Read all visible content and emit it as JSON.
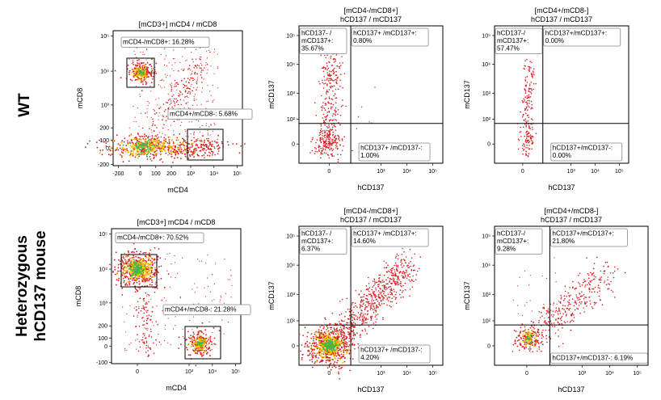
{
  "row_labels": {
    "wt": "WT",
    "het_line1": "Heterozygous",
    "het_line2": "hCD137 mouse"
  },
  "colors": {
    "dot": "#d62020",
    "dense": "#f5c400",
    "core": "#42b84a",
    "gate_box": "#000000",
    "label_fill": "#ffffff",
    "label_border": "#888888"
  },
  "chart_data": [
    {
      "id": "wt-cd4-cd8",
      "type": "scatter",
      "scale": "biexponential",
      "title": "[mCD3+] mCD4 / mCD8",
      "title_line2": "",
      "xlabel": "mCD4",
      "ylabel": "mCD8",
      "xticks": [
        "-200",
        "0",
        "100",
        "200",
        "10³",
        "10⁴",
        "10⁵"
      ],
      "yticks": [
        "10⁵",
        "10⁴",
        "10³",
        "200",
        "100",
        "0",
        "-200"
      ],
      "gates": [
        {
          "label": "mCD4-/mCD8+: 16.28%",
          "percent": 16.28
        },
        {
          "label": "mCD4+/mCD8-: 5.68%",
          "percent": 5.68
        }
      ]
    },
    {
      "id": "wt-cd8-cd137",
      "type": "scatter",
      "scale": "biexponential",
      "title": "[mCD4-/mCD8+]",
      "title_line2": "hCD137 / mCD137",
      "xlabel": "hCD137",
      "ylabel": "mCD137",
      "xticks": [
        "0",
        "10³",
        "10⁴",
        "10⁵"
      ],
      "yticks": [
        "10⁵",
        "10⁴",
        "10³",
        "10²",
        "0"
      ],
      "quadrants": [
        {
          "label1": "hCD137- /",
          "label2": "mCD137+:",
          "label3": "35.67%",
          "percent": 35.67
        },
        {
          "label1": "hCD137+ /mCD137+:",
          "label2": "0.80%",
          "label3": "",
          "percent": 0.8
        },
        {
          "label1": "hCD137+ /mCD137-:",
          "label2": "1.00%",
          "label3": "",
          "percent": 1.0
        }
      ]
    },
    {
      "id": "wt-cd4-cd137",
      "type": "scatter",
      "scale": "biexponential",
      "title": "[mCD4+/mCD8-]",
      "title_line2": "hCD137 / mCD137",
      "xlabel": "hCD137",
      "ylabel": "mCD137",
      "xticks": [
        "0",
        "10³",
        "10⁴",
        "10⁵"
      ],
      "yticks": [
        "10⁵",
        "10⁴",
        "10³",
        "10²",
        "0"
      ],
      "quadrants": [
        {
          "label1": "hCD137-/",
          "label2": "mCD137+:",
          "label3": "57.47%",
          "percent": 57.47
        },
        {
          "label1": "hCD137+/mCD137+:",
          "label2": "0.00%",
          "label3": "",
          "percent": 0.0
        },
        {
          "label1": "hCD137+/mCD137-:",
          "label2": "0.00%",
          "label3": "",
          "percent": 0.0
        }
      ]
    },
    {
      "id": "het-cd4-cd8",
      "type": "scatter",
      "scale": "biexponential",
      "title": "[mCD3+] mCD4 / mCD8",
      "title_line2": "",
      "xlabel": "mCD4",
      "ylabel": "mCD8",
      "xticks": [
        "0",
        "10³",
        "10⁴",
        "10⁵"
      ],
      "yticks": [
        "10⁵",
        "10⁴",
        "10³",
        "200",
        "100",
        "0",
        "-100"
      ],
      "gates": [
        {
          "label": "mCD4-/mCD8+: 70.52%",
          "percent": 70.52
        },
        {
          "label": "mCD4+/mCD8-: 21.28%",
          "percent": 21.28
        }
      ]
    },
    {
      "id": "het-cd8-cd137",
      "type": "scatter",
      "scale": "biexponential",
      "title": "[mCD4-/mCD8+]",
      "title_line2": "hCD137 / mCD137",
      "xlabel": "hCD137",
      "ylabel": "mCD137",
      "xticks": [
        "0",
        "10³",
        "10⁴",
        "10⁵"
      ],
      "yticks": [
        "10⁵",
        "10⁴",
        "10³",
        "10²",
        "0"
      ],
      "quadrants": [
        {
          "label1": "hCD137- /",
          "label2": "mCD137+:",
          "label3": "6.37%",
          "percent": 6.37
        },
        {
          "label1": "hCD137+ /mCD137+:",
          "label2": "14.60%",
          "label3": "",
          "percent": 14.6
        },
        {
          "label1": "hCD137+ /mCD137-:",
          "label2": "4.20%",
          "label3": "",
          "percent": 4.2
        }
      ]
    },
    {
      "id": "het-cd4-cd137",
      "type": "scatter",
      "scale": "biexponential",
      "title": "[mCD4+/mCD8-]",
      "title_line2": "hCD137 / mCD137",
      "xlabel": "hCD137",
      "ylabel": "mCD137",
      "xticks": [
        "0",
        "10³",
        "10⁴",
        "10⁵"
      ],
      "yticks": [
        "10⁵",
        "10⁴",
        "10³",
        "10²",
        "0"
      ],
      "quadrants": [
        {
          "label1": "hCD137-/",
          "label2": "mCD137+:",
          "label3": "9.28%",
          "percent": 9.28
        },
        {
          "label1": "hCD137+/mCD137+:",
          "label2": "21.80%",
          "label3": "",
          "percent": 21.8
        },
        {
          "label1": "hCD137+/mCD137-: 6.19%",
          "label2": "",
          "label3": "",
          "percent": 6.19
        }
      ]
    }
  ]
}
